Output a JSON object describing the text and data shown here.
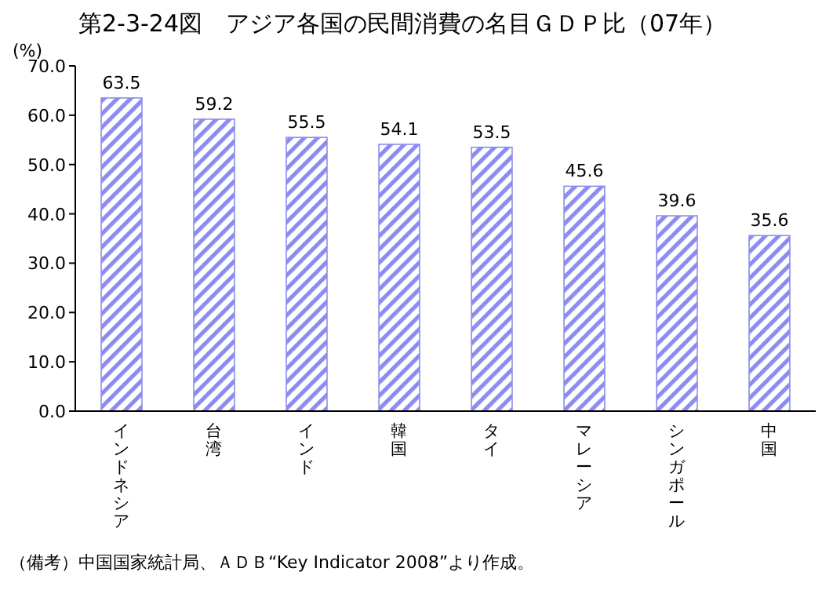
{
  "chart_data": {
    "type": "bar",
    "title": "第2-3-24図　アジア各国の民間消費の名目ＧＤＰ比（07年）",
    "ylabel": "(%)",
    "categories": [
      "インドネシア",
      "台湾",
      "インド",
      "韓国",
      "タイ",
      "マレーシア",
      "シンガポール",
      "中国"
    ],
    "values": [
      63.5,
      59.2,
      55.5,
      54.1,
      53.5,
      45.6,
      39.6,
      35.6
    ],
    "color": "#8c8cf0",
    "ylim": [
      0,
      70
    ],
    "yticks": [
      {
        "value": 0,
        "label": "0.0"
      },
      {
        "value": 10,
        "label": "10.0"
      },
      {
        "value": 20,
        "label": "20.0"
      },
      {
        "value": 30,
        "label": "30.0"
      },
      {
        "value": 40,
        "label": "40.0"
      },
      {
        "value": 50,
        "label": "50.0"
      },
      {
        "value": 60,
        "label": "60.0"
      },
      {
        "value": 70,
        "label": "70.0"
      }
    ],
    "data_labels": true,
    "annotations": [
      "（備考）中国国家統計局、ＡＤＢ“Key Indicator 2008”より作成。"
    ]
  }
}
